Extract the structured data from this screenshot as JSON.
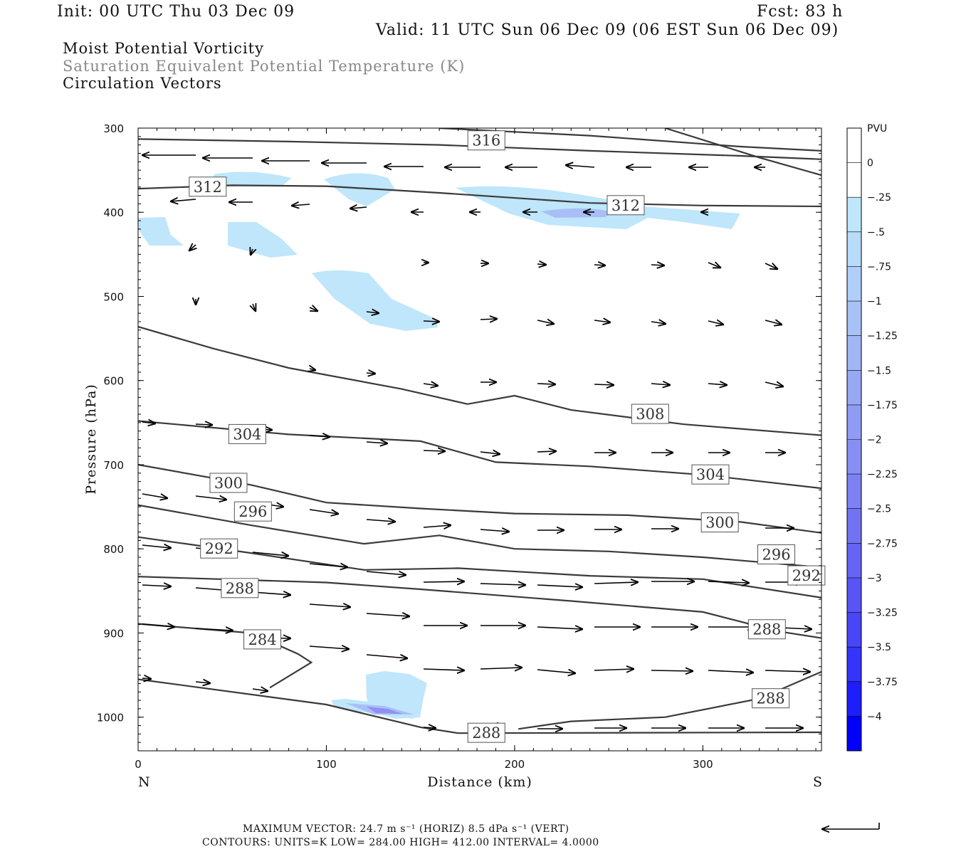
{
  "header": {
    "init": "Init: 00 UTC Thu 03 Dec 09",
    "fcst": "Fcst:   83 h",
    "valid": "Valid: 11 UTC Sun 06 Dec 09 (06 EST Sun 06 Dec 09)"
  },
  "titles": {
    "line1": "Moist Potential Vorticity",
    "line2": "Saturation Equivalent Potential Temperature (K)",
    "line3": "Circulation Vectors"
  },
  "footer": {
    "maxvec": "MAXIMUM VECTOR:  24.7 m s⁻¹ (HORIZ)          8.5 dPa s⁻¹ (VERT)",
    "contours": "CONTOURS:  UNITS=K  LOW=  284.00        HIGH=  412.00        INTERVAL=     4.0000"
  },
  "colors": {
    "contour": "#3a3a3a",
    "shade_light": "#bfe6fb",
    "shade_mid": "#a8bff5",
    "shade_dark": "#8f8ff2"
  },
  "chart_data": {
    "type": "cross-section",
    "xlabel": "Distance (km)",
    "ylabel": "Pressure (hPa)",
    "xlim": [
      0,
      363
    ],
    "ylim": [
      1040,
      300
    ],
    "x_ticks": [
      0,
      100,
      200,
      300
    ],
    "y_ticks": [
      300,
      400,
      500,
      600,
      700,
      800,
      900,
      1000
    ],
    "left_end_label": "N",
    "right_end_label": "S",
    "colorbar": {
      "title": "PVU",
      "levels": [
        "0",
        "-.25",
        "-.5",
        "-.75",
        "-1",
        "-1.25",
        "-1.5",
        "-1.75",
        "-2",
        "-2.25",
        "-2.5",
        "-2.75",
        "-3",
        "-3.25",
        "-3.5",
        "-3.75",
        "-4"
      ],
      "colors": [
        "#ffffff",
        "#ffffff",
        "#bfe6fb",
        "#b8dcfa",
        "#b0cff8",
        "#a8c2f6",
        "#a0b6f5",
        "#98a9f4",
        "#909cf3",
        "#8790f2",
        "#7d82f2",
        "#7273f3",
        "#6564f4",
        "#5755f5",
        "#4846f7",
        "#3535f9",
        "#1e1efb",
        "#0000ff"
      ]
    },
    "contours": [
      {
        "label": "316",
        "points": [
          [
            0,
            313
          ],
          [
            80,
            316
          ],
          [
            160,
            320
          ],
          [
            240,
            327
          ],
          [
            320,
            333
          ],
          [
            363,
            337
          ]
        ]
      },
      {
        "label": "",
        "points": [
          [
            160,
            300
          ],
          [
            240,
            309
          ],
          [
            320,
            322
          ],
          [
            363,
            327
          ]
        ]
      },
      {
        "label": "",
        "points": [
          [
            280,
            300
          ],
          [
            330,
            335
          ],
          [
            363,
            356
          ]
        ]
      },
      {
        "label": "312",
        "points": [
          [
            0,
            372
          ],
          [
            50,
            368
          ],
          [
            100,
            369
          ],
          [
            160,
            377
          ],
          [
            240,
            389
          ],
          [
            300,
            392
          ],
          [
            363,
            393
          ]
        ]
      },
      {
        "label": "308",
        "points": [
          [
            0,
            536
          ],
          [
            40,
            562
          ],
          [
            80,
            585
          ],
          [
            140,
            610
          ],
          [
            175,
            628
          ],
          [
            200,
            618
          ],
          [
            230,
            635
          ],
          [
            290,
            652
          ],
          [
            363,
            665
          ]
        ]
      },
      {
        "label": "304",
        "points": [
          [
            0,
            648
          ],
          [
            80,
            664
          ],
          [
            150,
            672
          ],
          [
            190,
            697
          ],
          [
            240,
            702
          ],
          [
            300,
            712
          ],
          [
            363,
            728
          ]
        ]
      },
      {
        "label": "300",
        "points": [
          [
            0,
            700
          ],
          [
            60,
            724
          ],
          [
            100,
            745
          ],
          [
            150,
            752
          ],
          [
            200,
            758
          ],
          [
            260,
            760
          ],
          [
            320,
            768
          ],
          [
            363,
            781
          ]
        ]
      },
      {
        "label": "296",
        "points": [
          [
            0,
            748
          ],
          [
            60,
            772
          ],
          [
            120,
            794
          ],
          [
            160,
            784
          ],
          [
            200,
            800
          ],
          [
            250,
            803
          ],
          [
            300,
            810
          ],
          [
            363,
            822
          ]
        ]
      },
      {
        "label": "292",
        "points": [
          [
            0,
            786
          ],
          [
            60,
            805
          ],
          [
            120,
            825
          ],
          [
            170,
            823
          ],
          [
            240,
            832
          ],
          [
            300,
            836
          ],
          [
            363,
            858
          ]
        ]
      },
      {
        "label": "288",
        "points": [
          [
            0,
            833
          ],
          [
            100,
            840
          ],
          [
            150,
            848
          ],
          [
            230,
            862
          ],
          [
            300,
            875
          ],
          [
            340,
            898
          ],
          [
            363,
            906
          ]
        ]
      },
      {
        "label": "284",
        "points": [
          [
            0,
            889
          ],
          [
            60,
            900
          ],
          [
            85,
            925
          ],
          [
            92,
            935
          ],
          [
            70,
            965
          ]
        ]
      },
      {
        "label": "288",
        "points": [
          [
            0,
            955
          ],
          [
            100,
            985
          ],
          [
            150,
            1012
          ],
          [
            170,
            1019
          ],
          [
            363,
            1018
          ]
        ]
      },
      {
        "label": "288",
        "points": [
          [
            202,
            1014
          ],
          [
            230,
            1005
          ],
          [
            280,
            1000
          ],
          [
            330,
            978
          ],
          [
            363,
            946
          ]
        ]
      }
    ]
  }
}
